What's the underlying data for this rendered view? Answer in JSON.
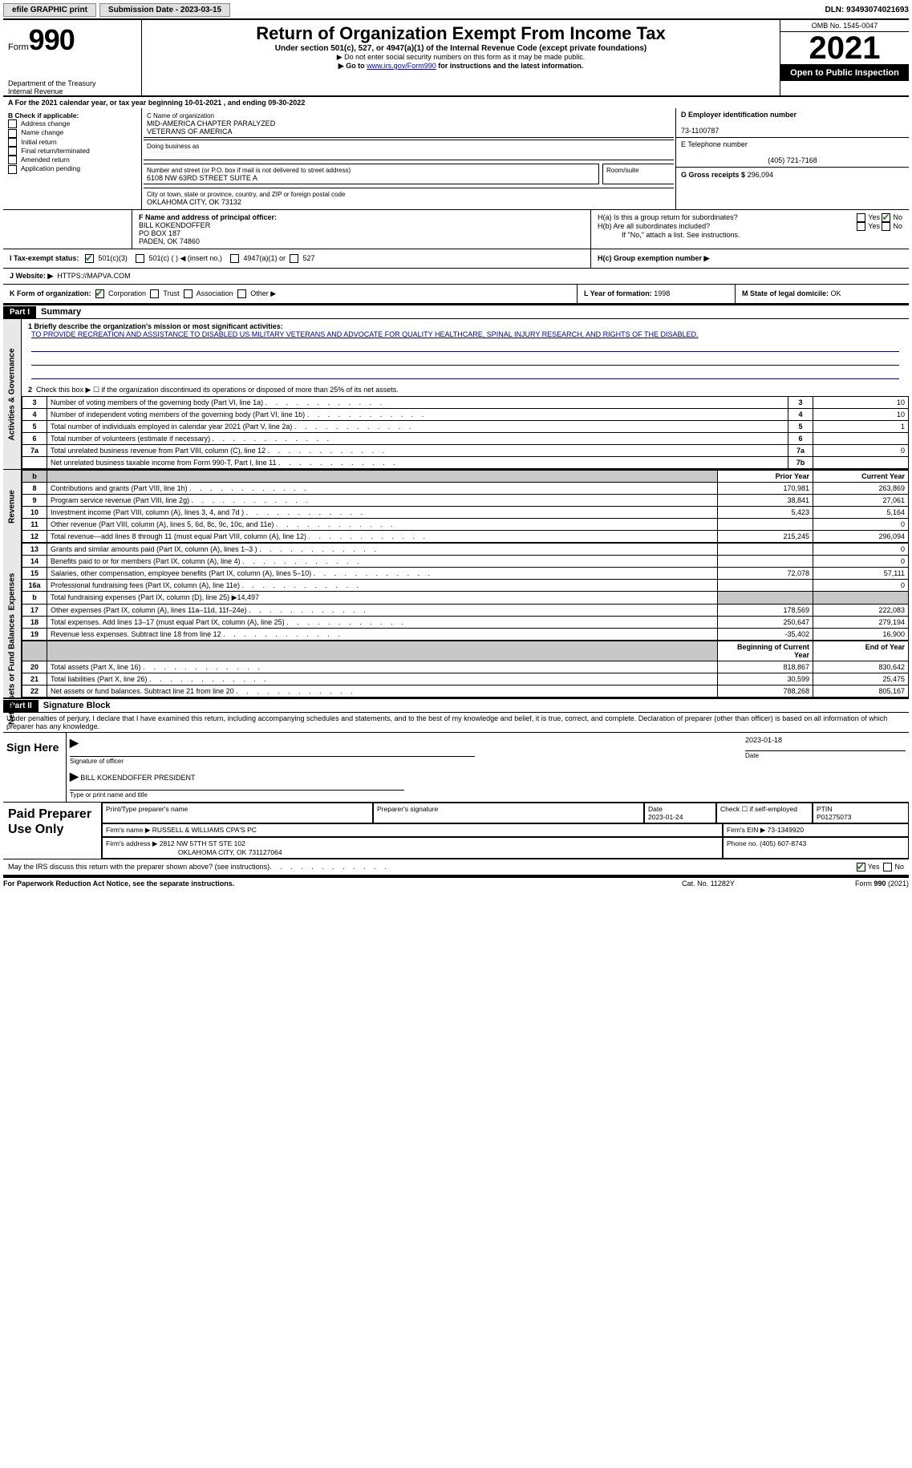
{
  "topbar": {
    "efile_label": "efile GRAPHIC print",
    "submission_label": "Submission Date - 2023-03-15",
    "dln_label": "DLN: 93493074021693"
  },
  "header": {
    "form_word": "Form",
    "form_num": "990",
    "dept": "Department of the Treasury",
    "irs": "Internal Revenue",
    "title": "Return of Organization Exempt From Income Tax",
    "subtitle": "Under section 501(c), 527, or 4947(a)(1) of the Internal Revenue Code (except private foundations)",
    "warn1": "▶ Do not enter social security numbers on this form as it may be made public.",
    "warn2_pre": "▶ Go to ",
    "warn2_link": "www.irs.gov/Form990",
    "warn2_post": " for instructions and the latest information.",
    "omb": "OMB No. 1545-0047",
    "year": "2021",
    "open": "Open to Public Inspection"
  },
  "periodA": "A For the 2021 calendar year, or tax year beginning 10-01-2021    , and ending 09-30-2022",
  "boxB": {
    "label": "B Check if applicable:",
    "items": [
      "Address change",
      "Name change",
      "Initial return",
      "Final return/terminated",
      "Amended return",
      "Application pending"
    ]
  },
  "boxC": {
    "name_label": "C Name of organization",
    "name1": "MID-AMERICA CHAPTER PARALYZED",
    "name2": "VETERANS OF AMERICA",
    "dba_label": "Doing business as",
    "addr_label": "Number and street (or P.O. box if mail is not delivered to street address)",
    "room_label": "Room/suite",
    "addr": "6108 NW 63RD STREET SUITE A",
    "city_label": "City or town, state or province, country, and ZIP or foreign postal code",
    "city": "OKLAHOMA CITY, OK   73132"
  },
  "boxD": {
    "label": "D Employer identification number",
    "ein": "73-1100787"
  },
  "boxE": {
    "label": "E Telephone number",
    "phone": "(405) 721-7168"
  },
  "boxG": {
    "label": "G Gross receipts $",
    "amount": "296,094"
  },
  "boxF": {
    "label": "F  Name and address of principal officer:",
    "name": "BILL KOKENDOFFER",
    "addr1": "PO BOX 187",
    "addr2": "PADEN, OK   74860"
  },
  "boxH": {
    "a_label": "H(a)  Is this a group return for subordinates?",
    "b_label": "H(b)  Are all subordinates included?",
    "b_note": "If \"No,\" attach a list. See instructions.",
    "c_label": "H(c)  Group exemption number ▶",
    "yes": "Yes",
    "no": "No"
  },
  "boxI": {
    "label": "I   Tax-exempt status:",
    "o1": "501(c)(3)",
    "o2": "501(c) (  ) ◀ (insert no.)",
    "o3": "4947(a)(1) or",
    "o4": "527"
  },
  "boxJ": {
    "label": "J   Website: ▶",
    "url": "HTTPS://MAPVA.COM"
  },
  "boxK": {
    "label": "K Form of organization:",
    "o1": "Corporation",
    "o2": "Trust",
    "o3": "Association",
    "o4": "Other ▶"
  },
  "boxL": {
    "label": "L Year of formation:",
    "val": "1998"
  },
  "boxM": {
    "label": "M State of legal domicile:",
    "val": "OK"
  },
  "part1": {
    "num": "Part I",
    "title": "Summary",
    "l1_label": "1  Briefly describe the organization's mission or most significant activities:",
    "mission": "TO PROVIDE RECREATION AND ASSISTANCE TO DISABLED US MILITARY VETERANS AND ADVOCATE FOR QUALITY HEALTHCARE, SPINAL INJURY RESEARCH, AND RIGHTS OF THE DISABLED.",
    "l2": "Check this box ▶ ☐  if the organization discontinued its operations or disposed of more than 25% of its net assets.",
    "side_act": "Activities & Governance",
    "side_rev": "Revenue",
    "side_exp": "Expenses",
    "side_net": "Net Assets or Fund Balances",
    "hdr_prior": "Prior Year",
    "hdr_curr": "Current Year",
    "hdr_beg": "Beginning of Current Year",
    "hdr_end": "End of Year",
    "lines_gov": [
      {
        "n": "3",
        "d": "Number of voting members of the governing body (Part VI, line 1a)",
        "box": "3",
        "v": "10"
      },
      {
        "n": "4",
        "d": "Number of independent voting members of the governing body (Part VI, line 1b)",
        "box": "4",
        "v": "10"
      },
      {
        "n": "5",
        "d": "Total number of individuals employed in calendar year 2021 (Part V, line 2a)",
        "box": "5",
        "v": "1"
      },
      {
        "n": "6",
        "d": "Total number of volunteers (estimate if necessary)",
        "box": "6",
        "v": ""
      },
      {
        "n": "7a",
        "d": "Total unrelated business revenue from Part VIII, column (C), line 12",
        "box": "7a",
        "v": "0"
      },
      {
        "n": "",
        "d": "Net unrelated business taxable income from Form 990-T, Part I, line 11",
        "box": "7b",
        "v": ""
      }
    ],
    "lines_rev": [
      {
        "n": "8",
        "d": "Contributions and grants (Part VIII, line 1h)",
        "p": "170,981",
        "c": "263,869"
      },
      {
        "n": "9",
        "d": "Program service revenue (Part VIII, line 2g)",
        "p": "38,841",
        "c": "27,061"
      },
      {
        "n": "10",
        "d": "Investment income (Part VIII, column (A), lines 3, 4, and 7d )",
        "p": "5,423",
        "c": "5,164"
      },
      {
        "n": "11",
        "d": "Other revenue (Part VIII, column (A), lines 5, 6d, 8c, 9c, 10c, and 11e)",
        "p": "",
        "c": "0"
      },
      {
        "n": "12",
        "d": "Total revenue—add lines 8 through 11 (must equal Part VIII, column (A), line 12)",
        "p": "215,245",
        "c": "296,094"
      }
    ],
    "lines_exp": [
      {
        "n": "13",
        "d": "Grants and similar amounts paid (Part IX, column (A), lines 1–3 )",
        "p": "",
        "c": "0"
      },
      {
        "n": "14",
        "d": "Benefits paid to or for members (Part IX, column (A), line 4)",
        "p": "",
        "c": "0"
      },
      {
        "n": "15",
        "d": "Salaries, other compensation, employee benefits (Part IX, column (A), lines 5–10)",
        "p": "72,078",
        "c": "57,111"
      },
      {
        "n": "16a",
        "d": "Professional fundraising fees (Part IX, column (A), line 11e)",
        "p": "",
        "c": "0"
      },
      {
        "n": "b",
        "d": "Total fundraising expenses (Part IX, column (D), line 25) ▶14,497",
        "p": "SHADE",
        "c": "SHADE"
      },
      {
        "n": "17",
        "d": "Other expenses (Part IX, column (A), lines 11a–11d, 11f–24e)",
        "p": "178,569",
        "c": "222,083"
      },
      {
        "n": "18",
        "d": "Total expenses. Add lines 13–17 (must equal Part IX, column (A), line 25)",
        "p": "250,647",
        "c": "279,194"
      },
      {
        "n": "19",
        "d": "Revenue less expenses. Subtract line 18 from line 12",
        "p": "-35,402",
        "c": "16,900"
      }
    ],
    "lines_net": [
      {
        "n": "20",
        "d": "Total assets (Part X, line 16)",
        "p": "818,867",
        "c": "830,642"
      },
      {
        "n": "21",
        "d": "Total liabilities (Part X, line 26)",
        "p": "30,599",
        "c": "25,475"
      },
      {
        "n": "22",
        "d": "Net assets or fund balances. Subtract line 21 from line 20",
        "p": "788,268",
        "c": "805,167"
      }
    ]
  },
  "part2": {
    "num": "Part II",
    "title": "Signature Block",
    "decl": "Under penalties of perjury, I declare that I have examined this return, including accompanying schedules and statements, and to the best of my knowledge and belief, it is true, correct, and complete. Declaration of preparer (other than officer) is based on all information of which preparer has any knowledge.",
    "sign_here": "Sign Here",
    "sig_officer": "Signature of officer",
    "sig_date": "2023-01-18",
    "date_lbl": "Date",
    "officer_name": "BILL KOKENDOFFER  PRESIDENT",
    "name_title_lbl": "Type or print name and title",
    "paid": "Paid Preparer Use Only",
    "pt_name_lbl": "Print/Type preparer's name",
    "pt_sig_lbl": "Preparer's signature",
    "pt_date_lbl": "Date",
    "pt_date": "2023-01-24",
    "pt_check_lbl": "Check ☐ if self-employed",
    "ptin_lbl": "PTIN",
    "ptin": "P01275073",
    "firm_name_lbl": "Firm's name     ▶",
    "firm_name": "RUSSELL & WILLIAMS CPA'S PC",
    "firm_ein_lbl": "Firm's EIN ▶",
    "firm_ein": "73-1349920",
    "firm_addr_lbl": "Firm's address ▶",
    "firm_addr1": "2812 NW 57TH ST STE 102",
    "firm_addr2": "OKLAHOMA CITY, OK  731127064",
    "firm_phone_lbl": "Phone no.",
    "firm_phone": "(405) 607-8743",
    "discuss": "May the IRS discuss this return with the preparer shown above? (see instructions)",
    "yes": "Yes",
    "no": "No"
  },
  "footer": {
    "pra": "For Paperwork Reduction Act Notice, see the separate instructions.",
    "cat": "Cat. No. 11282Y",
    "form": "Form 990 (2021)"
  }
}
